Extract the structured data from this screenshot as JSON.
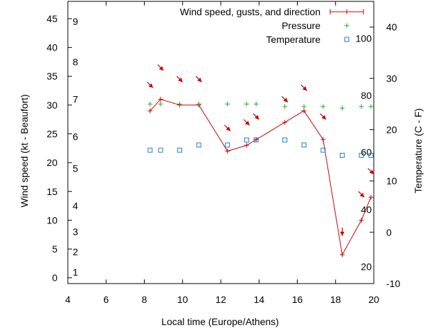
{
  "chart_data": {
    "type": "line",
    "xlabel": "Local time (Europe/Athens)",
    "ylabel": "Wind speed (kt - Beaufort)",
    "y2label": "Temperature (C - F)",
    "xlim": [
      4,
      20
    ],
    "ylim": [
      -1,
      48
    ],
    "y2lim": [
      -10,
      45
    ],
    "x_ticks": [
      4,
      6,
      8,
      10,
      12,
      14,
      16,
      18,
      20
    ],
    "y_ticks": [
      0,
      5,
      10,
      15,
      20,
      25,
      30,
      35,
      40,
      45
    ],
    "y2_ticks": [
      -10,
      0,
      10,
      20,
      30,
      40
    ],
    "beaufort_labels": [
      {
        "label": "1",
        "kt": 1
      },
      {
        "label": "2",
        "kt": 4.5
      },
      {
        "label": "3",
        "kt": 8
      },
      {
        "label": "4",
        "kt": 12.5
      },
      {
        "label": "5",
        "kt": 19
      },
      {
        "label": "6",
        "kt": 24.5
      },
      {
        "label": "7",
        "kt": 31
      },
      {
        "label": "8",
        "kt": 37.5
      },
      {
        "label": "9",
        "kt": 44.5
      }
    ],
    "fahrenheit_labels": [
      {
        "label": "20",
        "c": -6.7
      },
      {
        "label": "40",
        "c": 4.4
      },
      {
        "label": "60",
        "c": 15.6
      },
      {
        "label": "80",
        "c": 26.7
      },
      {
        "label": "100",
        "c": 37.8
      }
    ],
    "legend": {
      "position": "top-right",
      "entries": [
        "Wind speed, gusts, and direction",
        "Pressure",
        "Temperature"
      ]
    },
    "series": [
      {
        "name": "Wind speed, gusts, and direction",
        "color": "#cc0000",
        "x": [
          8.3,
          8.85,
          9.85,
          10.85,
          12.35,
          13.35,
          13.85,
          15.35,
          16.35,
          17.35,
          18.35,
          19.35,
          19.85
        ],
        "values": [
          29,
          31,
          30,
          30,
          22,
          23,
          24,
          27,
          29,
          24,
          4,
          10,
          14
        ]
      },
      {
        "name": "Pressure",
        "color": "#22aa22",
        "x": [
          8.3,
          8.85,
          9.85,
          10.85,
          12.35,
          13.35,
          13.85,
          15.35,
          16.35,
          17.35,
          18.35,
          19.35,
          19.85
        ],
        "values": [
          25,
          25,
          25,
          25,
          25,
          25,
          25,
          24.5,
          24.5,
          24.5,
          24.2,
          24.5,
          24.5
        ]
      },
      {
        "name": "Temperature",
        "color": "#1a7ad9",
        "x": [
          8.3,
          8.85,
          9.85,
          10.85,
          12.35,
          13.35,
          13.85,
          15.35,
          16.35,
          17.35,
          18.35,
          19.35,
          19.85
        ],
        "values": [
          16,
          16,
          16,
          17,
          17,
          18,
          18,
          18,
          17,
          16,
          15,
          15,
          15
        ]
      }
    ],
    "wind_direction_arrows": [
      {
        "x": 8.3,
        "kt": 33.5,
        "toward_deg": 135
      },
      {
        "x": 8.85,
        "kt": 36.5,
        "toward_deg": 135
      },
      {
        "x": 9.85,
        "kt": 34.5,
        "toward_deg": 135
      },
      {
        "x": 10.85,
        "kt": 34.5,
        "toward_deg": 135
      },
      {
        "x": 12.35,
        "kt": 26,
        "toward_deg": 135
      },
      {
        "x": 13.35,
        "kt": 27,
        "toward_deg": 135
      },
      {
        "x": 13.85,
        "kt": 28,
        "toward_deg": 135
      },
      {
        "x": 15.35,
        "kt": 31,
        "toward_deg": 135
      },
      {
        "x": 16.35,
        "kt": 33,
        "toward_deg": 135
      },
      {
        "x": 17.35,
        "kt": 28,
        "toward_deg": 135
      },
      {
        "x": 18.35,
        "kt": 8,
        "toward_deg": 180
      },
      {
        "x": 19.35,
        "kt": 14.5,
        "toward_deg": 135
      },
      {
        "x": 19.85,
        "kt": 18.5,
        "toward_deg": 135
      }
    ]
  }
}
